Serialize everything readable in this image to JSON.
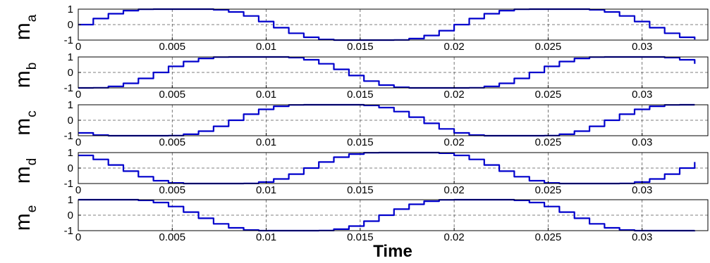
{
  "figure": {
    "xlabel": "Time"
  },
  "style": {
    "line_color": "#0000cc",
    "axis_color": "#000000",
    "grid_color": "#555555",
    "background": "#ffffff"
  },
  "chart_data": [
    {
      "type": "line",
      "ylabel_main": "m",
      "ylabel_sub": "a",
      "xlim": [
        0,
        0.0335
      ],
      "ylim": [
        -1,
        1
      ],
      "xticks": [
        "0",
        "0.005",
        "0.01",
        "0.015",
        "0.02",
        "0.025",
        "0.03"
      ],
      "xtick_values": [
        0,
        0.005,
        0.01,
        0.015,
        0.02,
        0.025,
        0.03
      ],
      "yticks": [
        "1",
        "0",
        "-1"
      ],
      "ytick_values": [
        1,
        0,
        -1
      ],
      "grid": "dashed",
      "series": [
        {
          "phase": 0.0,
          "values_note_free": true
        }
      ]
    },
    {
      "type": "line",
      "ylabel_main": "m",
      "ylabel_sub": "b",
      "xlim": [
        0,
        0.0335
      ],
      "ylim": [
        -1,
        1
      ],
      "xticks": [
        "0",
        "0.005",
        "0.01",
        "0.015",
        "0.02",
        "0.025",
        "0.03"
      ],
      "xtick_values": [
        0,
        0.005,
        0.01,
        0.015,
        0.02,
        0.025,
        0.03
      ],
      "yticks": [
        "1",
        "0",
        "-1"
      ],
      "ytick_values": [
        1,
        0,
        -1
      ],
      "grid": "dashed",
      "series": [
        {
          "phase": -1.2566
        }
      ]
    },
    {
      "type": "line",
      "ylabel_main": "m",
      "ylabel_sub": "c",
      "xlim": [
        0,
        0.0335
      ],
      "ylim": [
        -1,
        1
      ],
      "xticks": [
        "0",
        "0.005",
        "0.01",
        "0.015",
        "0.02",
        "0.025",
        "0.03"
      ],
      "xtick_values": [
        0,
        0.005,
        0.01,
        0.015,
        0.02,
        0.025,
        0.03
      ],
      "yticks": [
        "1",
        "0",
        "-1"
      ],
      "ytick_values": [
        1,
        0,
        -1
      ],
      "grid": "dashed",
      "series": [
        {
          "phase": -2.5133
        }
      ]
    },
    {
      "type": "line",
      "ylabel_main": "m",
      "ylabel_sub": "d",
      "xlim": [
        0,
        0.0335
      ],
      "ylim": [
        -1,
        1
      ],
      "xticks": [
        "0",
        "0.005",
        "0.01",
        "0.015",
        "0.02",
        "0.025",
        "0.03"
      ],
      "xtick_values": [
        0,
        0.005,
        0.01,
        0.015,
        0.02,
        0.025,
        0.03
      ],
      "yticks": [
        "1",
        "0",
        "-1"
      ],
      "ytick_values": [
        1,
        0,
        -1
      ],
      "grid": "dashed",
      "series": [
        {
          "phase": -3.7699
        }
      ]
    },
    {
      "type": "line",
      "ylabel_main": "m",
      "ylabel_sub": "e",
      "xlim": [
        0,
        0.0335
      ],
      "ylim": [
        -1,
        1
      ],
      "xticks": [
        "0",
        "0.005",
        "0.01",
        "0.015",
        "0.02",
        "0.025",
        "0.03"
      ],
      "xtick_values": [
        0,
        0.005,
        0.01,
        0.015,
        0.02,
        0.025,
        0.03
      ],
      "yticks": [
        "1",
        "0",
        "-1"
      ],
      "ytick_values": [
        1,
        0,
        -1
      ],
      "grid": "dashed",
      "series": [
        {
          "phase": -5.0265
        }
      ]
    }
  ],
  "waveform": {
    "frequency_hz": 50,
    "modulation_amplitude": 1.15,
    "harmonic3_amplitude": 0.15,
    "clip": [
      -1,
      1
    ],
    "sample_step_s": 0.0008,
    "x": [
      0,
      0.0335
    ]
  }
}
